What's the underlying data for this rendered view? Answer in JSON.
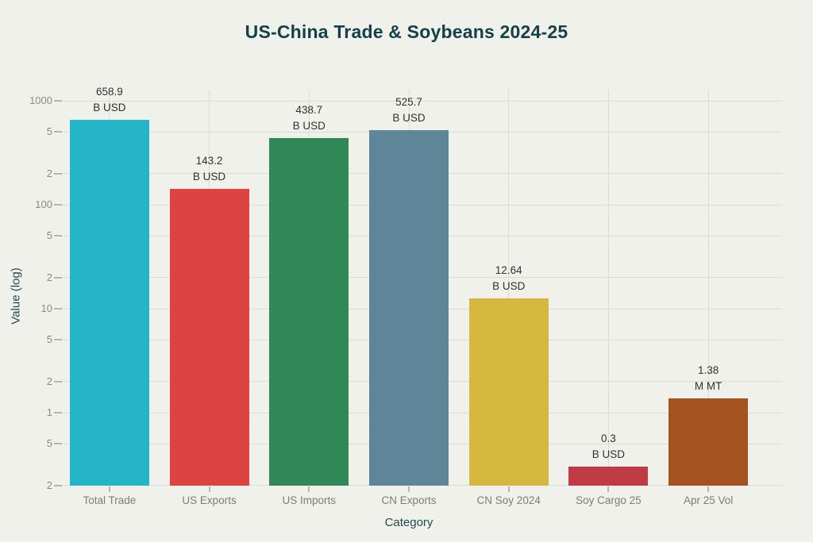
{
  "page": {
    "background": "#f1f1eb"
  },
  "chart_data": {
    "type": "bar",
    "title": "US-China Trade & Soybeans 2024-25",
    "xlabel": "Category",
    "ylabel": "Value (log)",
    "yscale": "log",
    "ylim": [
      0.2,
      1000
    ],
    "grid": true,
    "legend": "none",
    "categories": [
      "Total Trade",
      "US Exports",
      "US Imports",
      "CN Exports",
      "CN Soy 2024",
      "Soy Cargo 25",
      "Apr 25 Vol"
    ],
    "values": [
      658.9,
      143.2,
      438.7,
      525.7,
      12.64,
      0.3,
      1.38
    ],
    "value_labels": [
      "658.9",
      "143.2",
      "438.7",
      "525.7",
      "12.64",
      "0.3",
      "1.38"
    ],
    "units": [
      "B USD",
      "B USD",
      "B USD",
      "B USD",
      "B USD",
      "B USD",
      "M MT"
    ],
    "bar_colors": [
      "#24b6c8",
      "#de4343",
      "#308856",
      "#5f8698",
      "#d4b83f",
      "#c13b47",
      "#a4521f"
    ],
    "yticks": [
      {
        "value": 1000,
        "label": "1000"
      },
      {
        "value": 500,
        "label": "5"
      },
      {
        "value": 200,
        "label": "2"
      },
      {
        "value": 100,
        "label": "100"
      },
      {
        "value": 50,
        "label": "5"
      },
      {
        "value": 20,
        "label": "2"
      },
      {
        "value": 10,
        "label": "10"
      },
      {
        "value": 5,
        "label": "5"
      },
      {
        "value": 2,
        "label": "2"
      },
      {
        "value": 1,
        "label": "1"
      },
      {
        "value": 0.5,
        "label": "5"
      },
      {
        "value": 0.2,
        "label": "2"
      }
    ],
    "colors": {
      "background": "#f1f1eb",
      "gridline": "#dcded6",
      "tick_mark": "#b5b6b0",
      "tick_label": "#8a8b86",
      "category_label": "#7b7d78",
      "value_label": "#2c3333",
      "title": "#14404a",
      "axis_title": "#234a50"
    }
  }
}
